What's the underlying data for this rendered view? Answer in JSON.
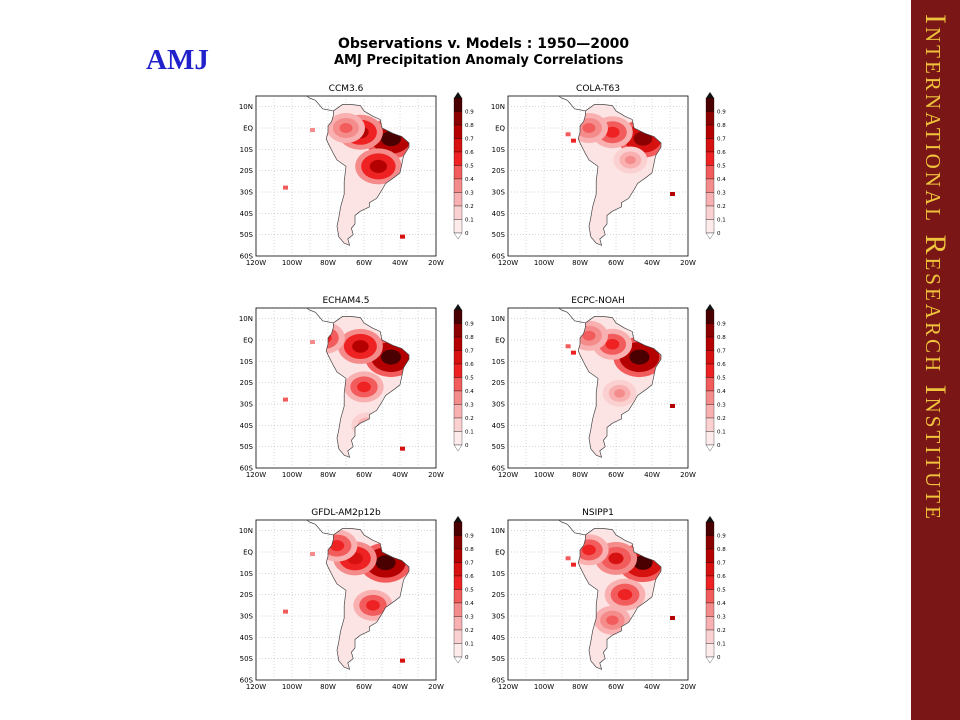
{
  "season_label": "AMJ",
  "title_line_1": "Observations v. Models : 1950—2000",
  "title_line_2": "AMJ Precipitation Anomaly Correlations",
  "side_banner": "International Research Institute",
  "panels": [
    {
      "title": "CCM3.6",
      "hotspots": [
        [
          -45,
          -5,
          1.0
        ],
        [
          -62,
          -2,
          0.75
        ],
        [
          -52,
          -18,
          0.8
        ],
        [
          -70,
          0,
          0.5
        ],
        [
          -90,
          0,
          0.6
        ]
      ]
    },
    {
      "title": "COLA-T63",
      "hotspots": [
        [
          -45,
          -5,
          0.9
        ],
        [
          -62,
          -2,
          0.6
        ],
        [
          -75,
          0,
          0.5
        ],
        [
          -52,
          -15,
          0.35
        ]
      ]
    },
    {
      "title": "ECHAM4.5",
      "hotspots": [
        [
          -45,
          -8,
          1.0
        ],
        [
          -62,
          -3,
          0.75
        ],
        [
          -60,
          -22,
          0.55
        ],
        [
          -82,
          1,
          0.6
        ],
        [
          -58,
          -40,
          0.3
        ]
      ]
    },
    {
      "title": "ECPC-NOAH",
      "hotspots": [
        [
          -47,
          -8,
          1.0
        ],
        [
          -62,
          -2,
          0.55
        ],
        [
          -75,
          2,
          0.5
        ],
        [
          -58,
          -25,
          0.35
        ]
      ]
    },
    {
      "title": "GFDL-AM2p12b",
      "hotspots": [
        [
          -48,
          -5,
          1.0
        ],
        [
          -65,
          -3,
          0.7
        ],
        [
          -75,
          3,
          0.6
        ],
        [
          -55,
          -25,
          0.55
        ],
        [
          -90,
          0,
          0.4
        ]
      ]
    },
    {
      "title": "NSIPP1",
      "hotspots": [
        [
          -45,
          -5,
          0.95
        ],
        [
          -60,
          -3,
          0.65
        ],
        [
          -75,
          1,
          0.55
        ],
        [
          -55,
          -20,
          0.6
        ],
        [
          -62,
          -32,
          0.45
        ]
      ]
    }
  ],
  "lat_labels": [
    "10N",
    "EQ",
    "10S",
    "20S",
    "30S",
    "40S",
    "50S",
    "60S"
  ],
  "lon_labels": [
    "120W",
    "100W",
    "80W",
    "60W",
    "40W",
    "20W"
  ],
  "colorbar_levels": [
    "0.9",
    "0.8",
    "0.7",
    "0.6",
    "0.5",
    "0.4",
    "0.3",
    "0.2",
    "0.1",
    "0"
  ],
  "colorbar_colors": [
    "#4a0000",
    "#8b0000",
    "#b40000",
    "#d71010",
    "#ee2222",
    "#f25c5c",
    "#f58c8c",
    "#f8b0b0",
    "#fbd0d0",
    "#fdeaea"
  ],
  "land_color": "#ffffff",
  "coast_color": "#444444"
}
